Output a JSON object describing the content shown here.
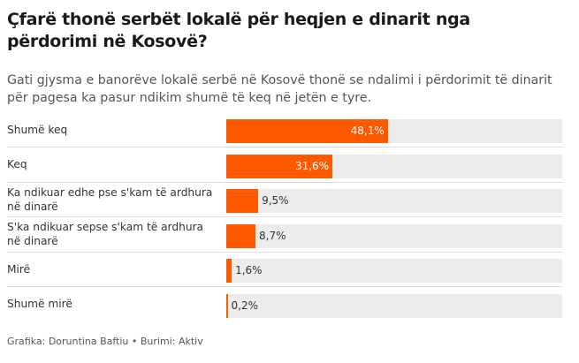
{
  "title": "Çfarë thonë serbët lokalë për heqjen e dinarit nga përdorimi në Kosovë?",
  "subtitle": "Gati gjysma e banorëve lokalë serbë në Kosovë thonë se ndalimi i përdorimit të dinarit për pagesa ka pasur ndikim shumë të keq në jetën e tyre.",
  "footer": "Grafika: Doruntina Baftiu • Burimi: Aktiv",
  "colors": {
    "bar": "#ff5a00",
    "track": "#ececec"
  },
  "chart_data": {
    "type": "bar",
    "orientation": "horizontal",
    "categories": [
      "Shumë keq",
      "Keq",
      "Ka ndikuar edhe pse s'kam të ardhura në dinarë",
      "S'ka ndikuar sepse s'kam të ardhura në dinarë",
      "Mirë",
      "Shumë mirë"
    ],
    "values": [
      48.1,
      31.6,
      9.5,
      8.7,
      1.6,
      0.2
    ],
    "labels": [
      "48,1%",
      "31,6%",
      "9,5%",
      "8,7%",
      "1,6%",
      "0,2%"
    ],
    "xlim": [
      0,
      100
    ],
    "unit": "%",
    "grid": false
  }
}
